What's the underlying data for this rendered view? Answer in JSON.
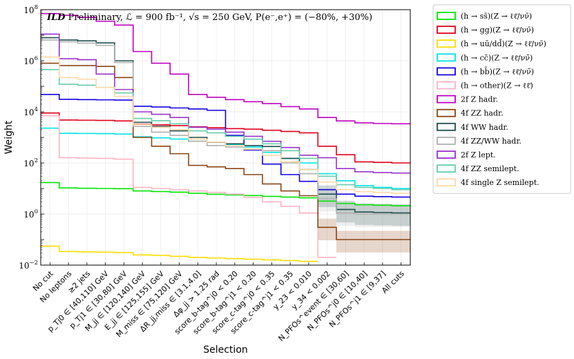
{
  "chart_data": {
    "type": "step-line",
    "title": "ILD Preliminary, ℒ = 900 fb⁻¹, √s = 250 GeV, P(e⁻,e⁺) = (−80%, +30%)",
    "title_bold": "ILD",
    "title_rest": " Preliminary, ℒ = 900 fb⁻¹, √s = 250 GeV, P(e⁻,e⁺) = (−80%, +30%)",
    "xlabel": "Selection",
    "ylabel": "Weight",
    "yscale": "log",
    "ylim": [
      0.01,
      100000000
    ],
    "y_ticks": [
      {
        "value": 0.01,
        "base": "10",
        "exp": "−2"
      },
      {
        "value": 1,
        "base": "10",
        "exp": "0"
      },
      {
        "value": 100,
        "base": "10",
        "exp": "2"
      },
      {
        "value": 10000,
        "base": "10",
        "exp": "4"
      },
      {
        "value": 1000000,
        "base": "10",
        "exp": "6"
      },
      {
        "value": 100000000,
        "base": "10",
        "exp": "8"
      }
    ],
    "categories": [
      "No cut",
      "No leptons",
      "≥2 jets",
      "p_Tj0 ∈ [40,110] GeV",
      "p_Tj1 ∈ [30,80] GeV",
      "M_jj ∈ [120,140] GeV",
      "E_jj ∈ [125,155] GeV",
      "M_miss ∈ [75,120] GeV",
      "ΔR_jj,miss ∈ [3.1,4.0]",
      "Δφ_jj > 1.25 rad",
      "score_b-tag^j0 < 0.20",
      "score_b-tag^j1 < 0.20",
      "score_c-tag^j0 < 0.35",
      "score_c-tag^j1 < 0.35",
      "y_23 < 0.010",
      "y_34 < 0.002",
      "N_PFOs^event ∈ [30,60]",
      "N_PFOs^j0 ∈ [10,40]",
      "N_PFOs^j1 ∈ [9,37]",
      "All cuts"
    ],
    "series": [
      {
        "name": "(h → ss̄)(Z → ℓℓ̄/νν̄)",
        "color": "#00e600",
        "uncertainty": false,
        "values": [
          17,
          10.5,
          10.2,
          10,
          9.8,
          8,
          7.6,
          7.2,
          6.5,
          5.9,
          5.6,
          5.3,
          4.9,
          4.6,
          4.3,
          3.2,
          2.6,
          2.3,
          2.2,
          2.1
        ]
      },
      {
        "name": "(h → gg)(Z → ℓℓ̄/νν̄)",
        "color": "#e3001b",
        "uncertainty": false,
        "values": [
          9000,
          4800,
          4700,
          4600,
          4400,
          3300,
          3100,
          2900,
          2600,
          2400,
          2200,
          2100,
          1900,
          1700,
          1500,
          450,
          210,
          110,
          105,
          100
        ]
      },
      {
        "name": "(h → uū/dd̄)(Z → ℓℓ̄/νν̄)",
        "color": "#ffdd00",
        "uncertainty": false,
        "values": [
          0.055,
          0.034,
          0.033,
          0.032,
          0.031,
          0.025,
          0.024,
          0.022,
          0.02,
          0.019,
          0.018,
          0.017,
          0.016,
          0.015,
          0.014,
          null,
          null,
          null,
          null,
          null
        ]
      },
      {
        "name": "(h → cc̄)(Z → ℓℓ̄/νν̄)",
        "color": "#00e3e3",
        "uncertainty": false,
        "values": [
          2300,
          1450,
          1420,
          1400,
          1350,
          1050,
          960,
          860,
          700,
          640,
          510,
          420,
          260,
          150,
          100,
          38,
          20,
          13,
          11,
          10
        ]
      },
      {
        "name": "(h → bb̄)(Z → ℓℓ̄/νν̄)",
        "color": "#1400e3",
        "uncertainty": false,
        "values": [
          48000,
          31000,
          30000,
          29500,
          29000,
          16500,
          15500,
          14200,
          13000,
          11500,
          1200,
          320,
          90,
          35,
          19,
          9,
          6,
          5,
          4.8,
          4.6
        ]
      },
      {
        "name": "(h → other)(Z → ℓℓ̄)",
        "color": "#ffb3c1",
        "uncertainty": false,
        "values": [
          7000,
          160,
          155,
          150,
          140,
          11,
          10,
          9,
          8,
          7,
          6,
          4.5,
          3,
          2,
          1.1,
          0.02,
          null,
          null,
          null,
          null
        ]
      },
      {
        "name": "2f Z hadr.",
        "color": "#c000c0",
        "uncertainty": false,
        "values": [
          70000000,
          60000000,
          50000000,
          35000000,
          25000000,
          2300000,
          800000,
          300000,
          48000,
          37000,
          30000,
          25000,
          21000,
          16000,
          13000,
          6000,
          4400,
          3700,
          3500,
          3400
        ]
      },
      {
        "name": "4f ZZ hadr.",
        "color": "#8b4513",
        "uncertainty": true,
        "values": [
          800000,
          650000,
          650000,
          600000,
          220000,
          1000,
          450,
          230,
          80,
          70,
          60,
          35,
          15,
          8,
          5.2,
          0.3,
          0.1,
          0.1,
          0.1,
          0.1
        ]
      },
      {
        "name": "4f WW hadr.",
        "color": "#1f4e4e",
        "uncertainty": true,
        "values": [
          8000000,
          6500000,
          6000000,
          5000000,
          1000000,
          3900,
          2700,
          1800,
          1000,
          640,
          560,
          480,
          440,
          150,
          55,
          6,
          1.5,
          1.2,
          1.15,
          1.1
        ]
      },
      {
        "name": "4f ZZ/WW hadr.",
        "color": "#b0b0b0",
        "uncertainty": true,
        "values": [
          6500000,
          5500000,
          4900000,
          4000000,
          850000,
          2700,
          1600,
          1200,
          700,
          480,
          420,
          350,
          300,
          100,
          38,
          4,
          1.1,
          1.0,
          1.0,
          1.0
        ]
      },
      {
        "name": "2f Z lept.",
        "color": "#9932cc",
        "uncertainty": false,
        "values": [
          11000000,
          1200000,
          1100000,
          300000,
          75000,
          10000,
          8000,
          6000,
          2500,
          2100,
          1600,
          1100,
          700,
          400,
          200,
          160,
          60,
          45,
          42,
          40
        ]
      },
      {
        "name": "4f ZZ semilept.",
        "color": "#66cdaa",
        "uncertainty": false,
        "values": [
          450000,
          120000,
          110000,
          90000,
          55000,
          5500,
          4500,
          3400,
          1800,
          1500,
          1100,
          850,
          560,
          300,
          150,
          30,
          14,
          11,
          10,
          9
        ]
      },
      {
        "name": "4f single Z semilept.",
        "color": "#ffd8a8",
        "uncertainty": false,
        "values": [
          1400000,
          220000,
          190000,
          90000,
          40000,
          3200,
          2500,
          2000,
          850,
          650,
          480,
          340,
          200,
          110,
          55,
          18,
          9,
          7.5,
          7,
          6.5
        ]
      }
    ],
    "legend_position": "outside-right",
    "grid": true
  }
}
